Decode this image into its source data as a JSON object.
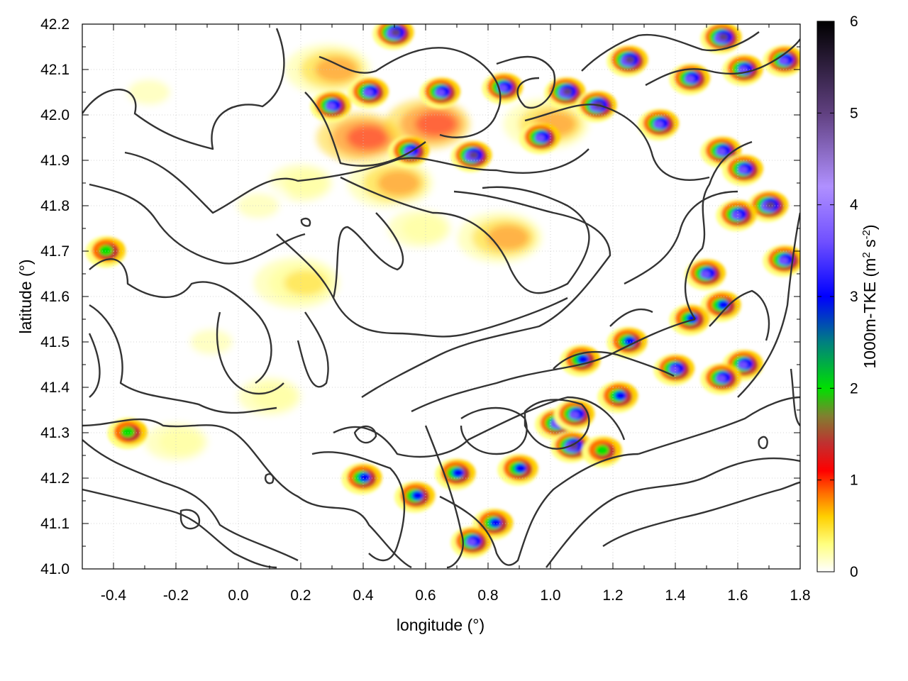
{
  "chart_data": {
    "type": "heatmap",
    "xlabel": "longitude (°)",
    "ylabel": "latitude (°)",
    "colorbar_label": "1000m-TKE (m² s⁻²)",
    "colorbar_label_parts": {
      "main": "1000m-TKE (m",
      "sup1": "2",
      "mid": " s",
      "sup2": "-2",
      "end": ")"
    },
    "xlim": [
      -0.5,
      1.8
    ],
    "ylim": [
      41.0,
      42.2
    ],
    "xticks": [
      -0.4,
      -0.2,
      0.0,
      0.2,
      0.4,
      0.6,
      0.8,
      1.0,
      1.2,
      1.4,
      1.6,
      1.8
    ],
    "xtick_labels": [
      "-0.4",
      "-0.2",
      "0.0",
      "0.2",
      "0.4",
      "0.6",
      "0.8",
      "1.0",
      "1.2",
      "1.4",
      "1.6",
      "1.8"
    ],
    "yticks": [
      41.0,
      41.1,
      41.2,
      41.3,
      41.4,
      41.5,
      41.6,
      41.7,
      41.8,
      41.9,
      42.0,
      42.1,
      42.2
    ],
    "ytick_labels": [
      "41.0",
      "41.1",
      "41.2",
      "41.3",
      "41.4",
      "41.5",
      "41.6",
      "41.7",
      "41.8",
      "41.9",
      "42.0",
      "42.1",
      "42.2"
    ],
    "colorbar_range": [
      0,
      6
    ],
    "colorbar_ticks": [
      0,
      1,
      2,
      3,
      4,
      5,
      6
    ],
    "colorbar_tick_labels": [
      "0",
      "1",
      "2",
      "3",
      "4",
      "5",
      "6"
    ],
    "grid": true,
    "colormap": [
      {
        "v": 0.0,
        "color": "#ffffff"
      },
      {
        "v": 0.3,
        "color": "#ffff80"
      },
      {
        "v": 0.6,
        "color": "#ffd000"
      },
      {
        "v": 0.85,
        "color": "#ff7000"
      },
      {
        "v": 1.1,
        "color": "#ff0000"
      },
      {
        "v": 1.4,
        "color": "#c03030"
      },
      {
        "v": 1.7,
        "color": "#808030"
      },
      {
        "v": 2.0,
        "color": "#00e000"
      },
      {
        "v": 2.5,
        "color": "#008080"
      },
      {
        "v": 3.0,
        "color": "#0000ff"
      },
      {
        "v": 3.6,
        "color": "#7050ff"
      },
      {
        "v": 4.2,
        "color": "#b090ff"
      },
      {
        "v": 5.0,
        "color": "#604080"
      },
      {
        "v": 6.0,
        "color": "#000000"
      }
    ],
    "tke_hotspots": [
      {
        "lon": 0.5,
        "lat": 42.18,
        "tke": 5.0
      },
      {
        "lon": 0.42,
        "lat": 42.05,
        "tke": 4.5
      },
      {
        "lon": 0.3,
        "lat": 42.02,
        "tke": 4.0
      },
      {
        "lon": 0.55,
        "lat": 41.92,
        "tke": 4.5
      },
      {
        "lon": 0.75,
        "lat": 41.91,
        "tke": 5.5
      },
      {
        "lon": 0.65,
        "lat": 42.05,
        "tke": 4.5
      },
      {
        "lon": 0.85,
        "lat": 42.06,
        "tke": 4.0
      },
      {
        "lon": 0.97,
        "lat": 41.95,
        "tke": 4.5
      },
      {
        "lon": 1.05,
        "lat": 42.05,
        "tke": 5.0
      },
      {
        "lon": 1.15,
        "lat": 42.02,
        "tke": 5.5
      },
      {
        "lon": 1.25,
        "lat": 42.12,
        "tke": 5.5
      },
      {
        "lon": 1.35,
        "lat": 41.98,
        "tke": 4.0
      },
      {
        "lon": 1.45,
        "lat": 42.08,
        "tke": 4.0
      },
      {
        "lon": 1.55,
        "lat": 42.17,
        "tke": 5.0
      },
      {
        "lon": 1.62,
        "lat": 42.1,
        "tke": 4.0
      },
      {
        "lon": 1.75,
        "lat": 42.12,
        "tke": 4.5
      },
      {
        "lon": 1.55,
        "lat": 41.92,
        "tke": 4.5
      },
      {
        "lon": 1.62,
        "lat": 41.88,
        "tke": 4.0
      },
      {
        "lon": 1.7,
        "lat": 41.8,
        "tke": 5.5
      },
      {
        "lon": 1.6,
        "lat": 41.78,
        "tke": 4.0
      },
      {
        "lon": 1.75,
        "lat": 41.68,
        "tke": 4.0
      },
      {
        "lon": 1.5,
        "lat": 41.65,
        "tke": 4.0
      },
      {
        "lon": 1.55,
        "lat": 41.58,
        "tke": 3.5
      },
      {
        "lon": 1.62,
        "lat": 41.45,
        "tke": 4.5
      },
      {
        "lon": 1.55,
        "lat": 41.42,
        "tke": 4.0
      },
      {
        "lon": 1.45,
        "lat": 41.55,
        "tke": 3.5
      },
      {
        "lon": 1.4,
        "lat": 41.44,
        "tke": 4.0
      },
      {
        "lon": 1.25,
        "lat": 41.5,
        "tke": 3.5
      },
      {
        "lon": 1.1,
        "lat": 41.46,
        "tke": 3.5
      },
      {
        "lon": 1.02,
        "lat": 41.32,
        "tke": 4.5
      },
      {
        "lon": 1.07,
        "lat": 41.27,
        "tke": 5.5
      },
      {
        "lon": 1.08,
        "lat": 41.34,
        "tke": 4.0
      },
      {
        "lon": 0.9,
        "lat": 41.22,
        "tke": 3.5
      },
      {
        "lon": 0.82,
        "lat": 41.1,
        "tke": 3.5
      },
      {
        "lon": 0.75,
        "lat": 41.06,
        "tke": 4.5
      },
      {
        "lon": 0.57,
        "lat": 41.16,
        "tke": 3.0
      },
      {
        "lon": 0.4,
        "lat": 41.2,
        "tke": 3.0
      },
      {
        "lon": 0.7,
        "lat": 41.21,
        "tke": 3.0
      },
      {
        "lon": 1.22,
        "lat": 41.38,
        "tke": 3.5
      },
      {
        "lon": -0.42,
        "lat": 41.7,
        "tke": 2.5
      },
      {
        "lon": -0.35,
        "lat": 41.3,
        "tke": 2.5
      },
      {
        "lon": 1.17,
        "lat": 41.26,
        "tke": 2.5
      }
    ],
    "tke_moderate_zones": [
      {
        "lon": 0.4,
        "lat": 41.95,
        "tke": 1.2
      },
      {
        "lon": 0.5,
        "lat": 41.85,
        "tke": 1.0
      },
      {
        "lon": 0.62,
        "lat": 41.98,
        "tke": 1.2
      },
      {
        "lon": 0.85,
        "lat": 41.73,
        "tke": 0.9
      },
      {
        "lon": 0.2,
        "lat": 41.85,
        "tke": 0.5
      },
      {
        "lon": 0.05,
        "lat": 41.8,
        "tke": 0.35
      },
      {
        "lon": -0.2,
        "lat": 41.28,
        "tke": 0.5
      },
      {
        "lon": -0.1,
        "lat": 41.5,
        "tke": 0.3
      },
      {
        "lon": 0.2,
        "lat": 41.63,
        "tke": 0.6
      },
      {
        "lon": 0.1,
        "lat": 41.38,
        "tke": 0.5
      },
      {
        "lon": 0.3,
        "lat": 42.1,
        "tke": 0.9
      },
      {
        "lon": 0.58,
        "lat": 41.75,
        "tke": 0.5
      },
      {
        "lon": -0.3,
        "lat": 42.05,
        "tke": 0.3
      },
      {
        "lon": 1.0,
        "lat": 41.98,
        "tke": 1.0
      }
    ]
  }
}
